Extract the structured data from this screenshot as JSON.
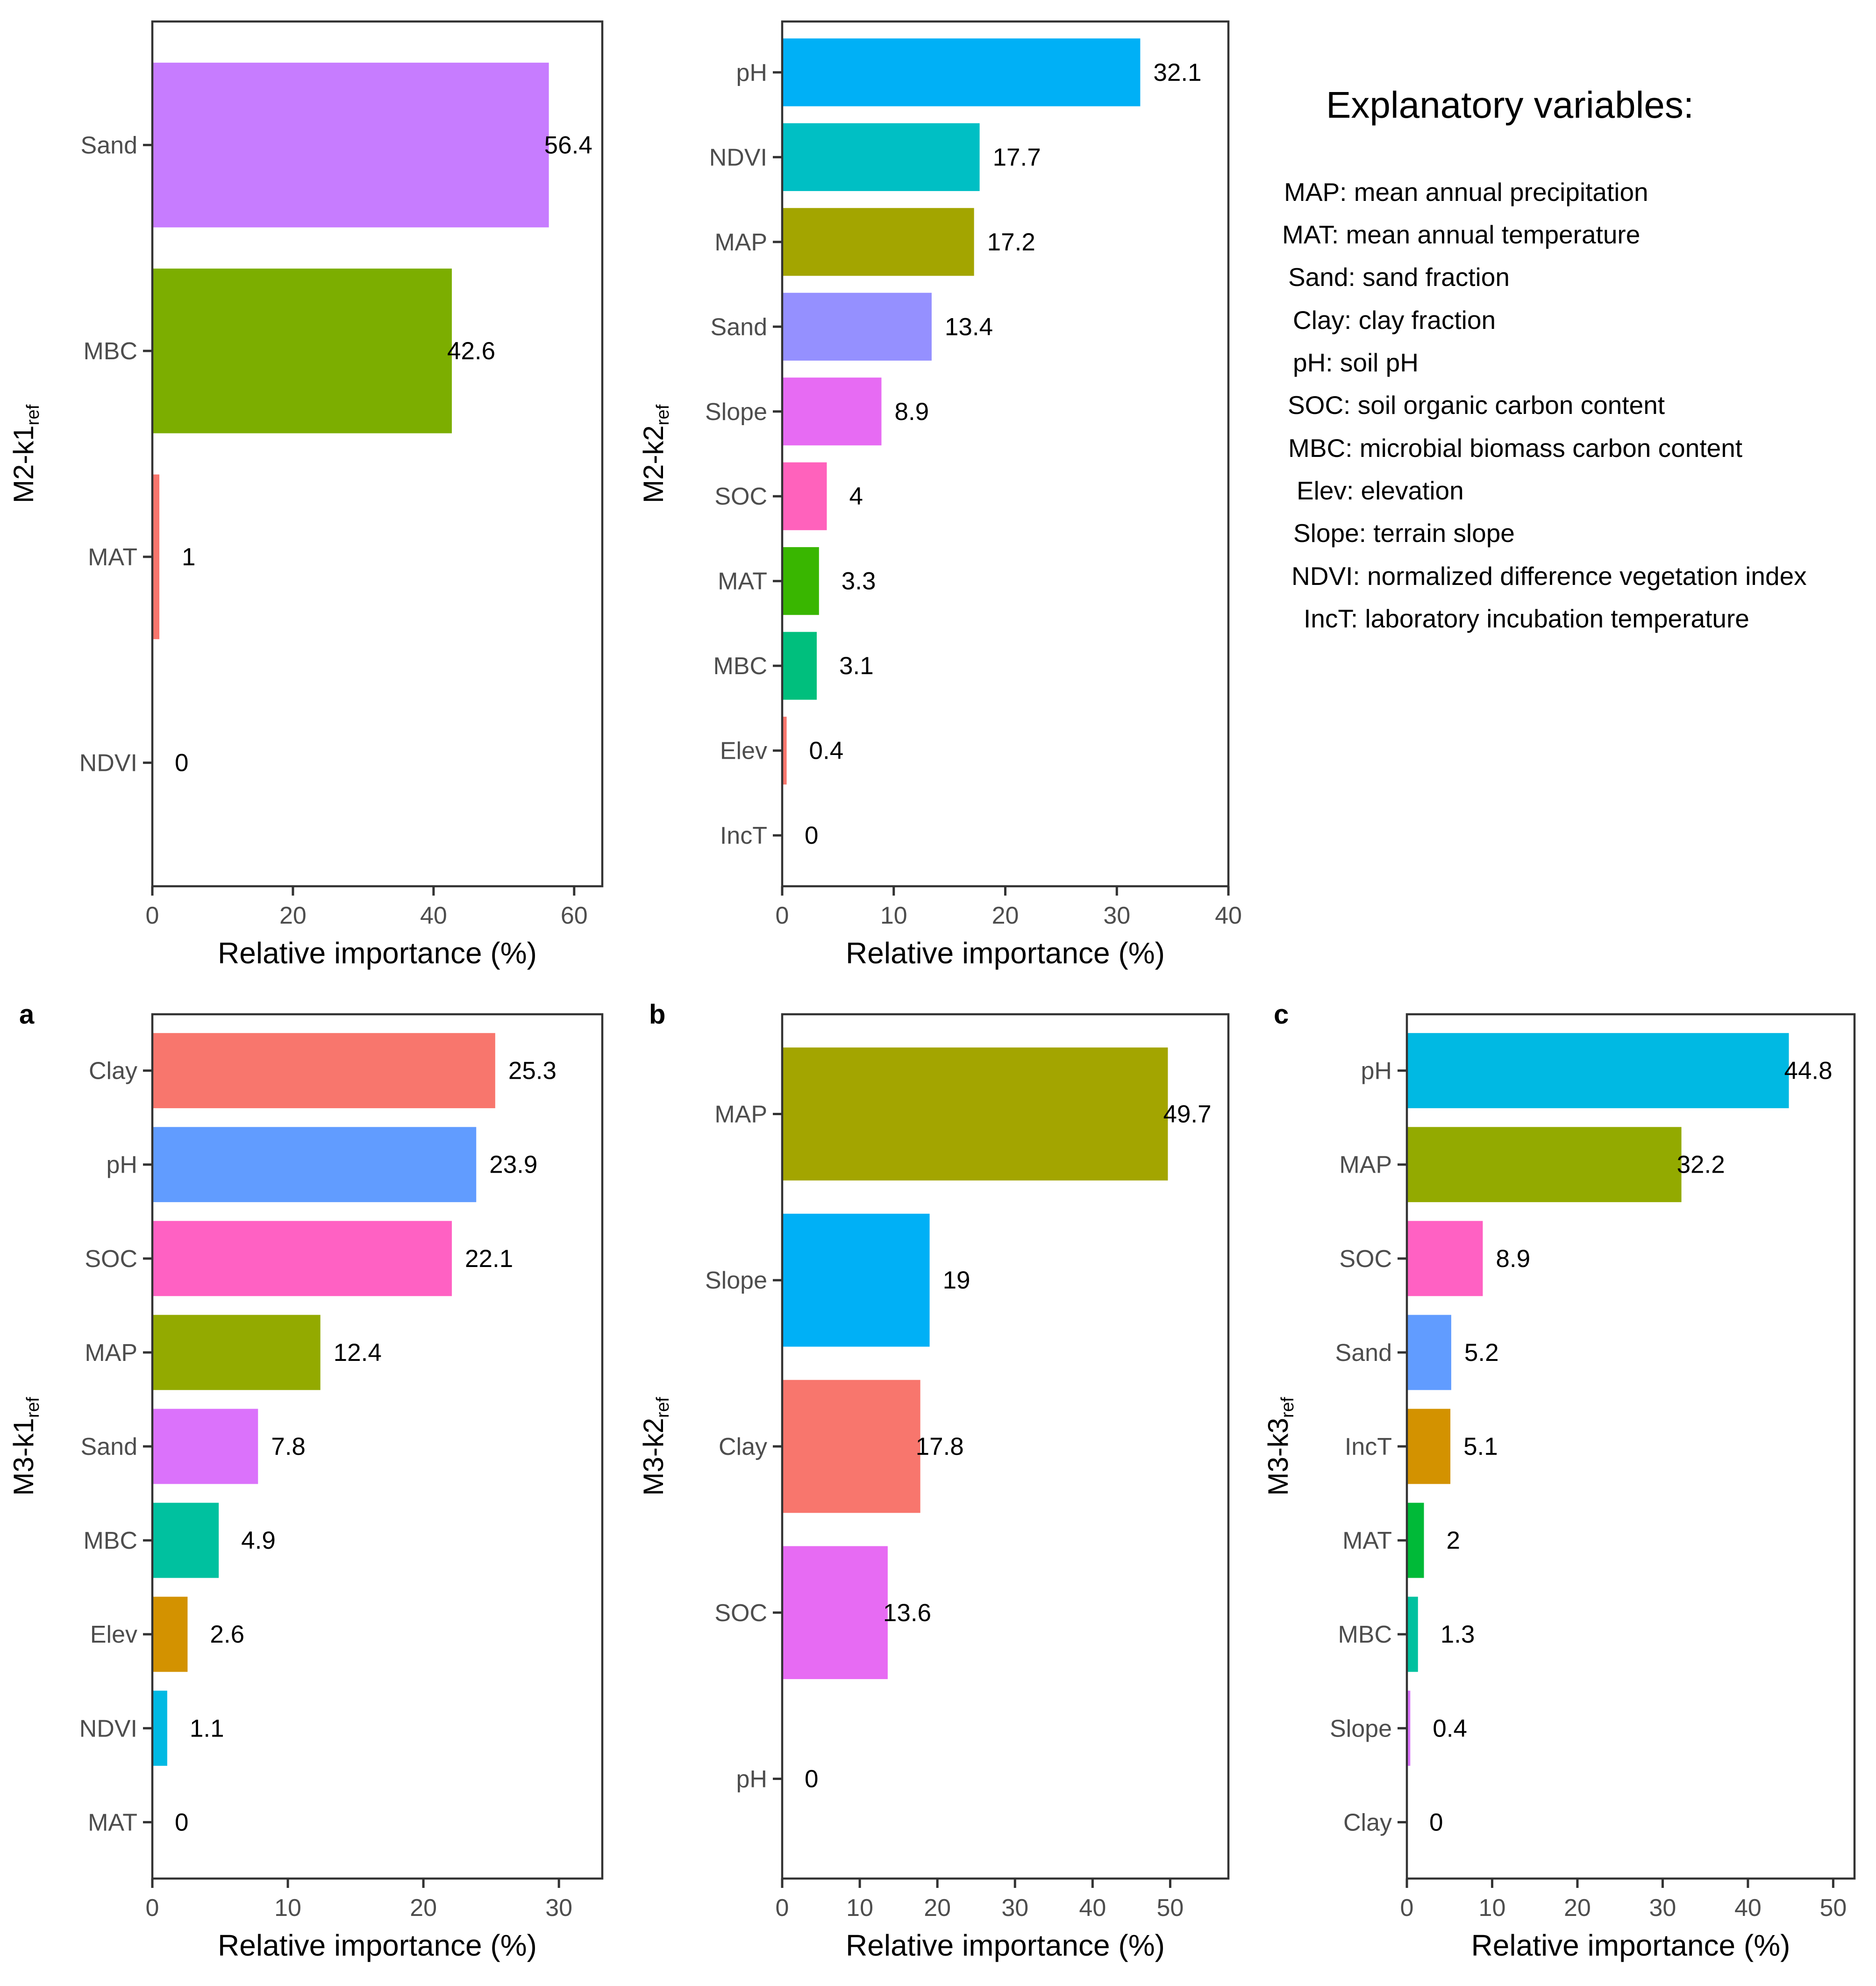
{
  "chart_data": [
    {
      "type": "bar",
      "orientation": "horizontal",
      "id": "m2k1",
      "panel_label": "",
      "ylabel_main": "M2-k1",
      "ylabel_sub": "ref",
      "xlabel": "Relative importance (%)",
      "xlim": [
        0,
        64
      ],
      "xticks": [
        0,
        20,
        40,
        60
      ],
      "categories": [
        "Sand",
        "MBC",
        "MAT",
        "NDVI"
      ],
      "values": [
        56.4,
        42.6,
        1,
        0
      ],
      "value_labels": [
        "56.4",
        "42.6",
        "1",
        "0"
      ],
      "colors": [
        "#C77CFF",
        "#7CAE00",
        "#F8766D",
        "#00BFC4"
      ]
    },
    {
      "type": "bar",
      "orientation": "horizontal",
      "id": "m2k2",
      "panel_label": "",
      "ylabel_main": "M2-k2",
      "ylabel_sub": "ref",
      "xlabel": "Relative importance (%)",
      "xlim": [
        0,
        40
      ],
      "xticks": [
        0,
        10,
        20,
        30,
        40
      ],
      "categories": [
        "pH",
        "NDVI",
        "MAP",
        "Sand",
        "Slope",
        "SOC",
        "MAT",
        "MBC",
        "Elev",
        "IncT"
      ],
      "values": [
        32.1,
        17.7,
        17.2,
        13.4,
        8.9,
        4,
        3.3,
        3.1,
        0.4,
        0
      ],
      "value_labels": [
        "32.1",
        "17.7",
        "17.2",
        "13.4",
        "8.9",
        "4",
        "3.3",
        "3.1",
        "0.4",
        "0"
      ],
      "colors": [
        "#00B0F6",
        "#00BFC4",
        "#A3A500",
        "#9590FF",
        "#E76BF3",
        "#FF62BC",
        "#39B600",
        "#00BF7D",
        "#F8766D",
        "#D89000"
      ]
    },
    {
      "type": "bar",
      "orientation": "horizontal",
      "id": "m3k1",
      "panel_label": "a",
      "ylabel_main": "M3-k1",
      "ylabel_sub": "ref",
      "xlabel": "Relative importance (%)",
      "xlim": [
        0,
        33.2
      ],
      "xticks": [
        0,
        10,
        20,
        30
      ],
      "categories": [
        "Clay",
        "pH",
        "SOC",
        "MAP",
        "Sand",
        "MBC",
        "Elev",
        "NDVI",
        "MAT"
      ],
      "values": [
        25.3,
        23.9,
        22.1,
        12.4,
        7.8,
        4.9,
        2.6,
        1.1,
        0
      ],
      "value_labels": [
        "25.3",
        "23.9",
        "22.1",
        "12.4",
        "7.8",
        "4.9",
        "2.6",
        "1.1",
        "0"
      ],
      "colors": [
        "#F8766D",
        "#619CFF",
        "#FF61C3",
        "#93AA00",
        "#DB72FB",
        "#00C19F",
        "#D39200",
        "#00B9E3",
        "#00BA38"
      ]
    },
    {
      "type": "bar",
      "orientation": "horizontal",
      "id": "m3k2",
      "panel_label": "b",
      "ylabel_main": "M3-k2",
      "ylabel_sub": "ref",
      "xlabel": "Relative importance (%)",
      "xlim": [
        0,
        57.5
      ],
      "xticks": [
        0,
        10,
        20,
        30,
        40,
        50
      ],
      "categories": [
        "MAP",
        "Slope",
        "Clay",
        "SOC",
        "pH"
      ],
      "values": [
        49.7,
        19,
        17.8,
        13.6,
        0
      ],
      "value_labels": [
        "49.7",
        "19",
        "17.8",
        "13.6",
        "0"
      ],
      "colors": [
        "#A3A500",
        "#00B0F6",
        "#F8766D",
        "#E76BF3",
        "#00BF7D"
      ]
    },
    {
      "type": "bar",
      "orientation": "horizontal",
      "id": "m3k3",
      "panel_label": "c",
      "ylabel_main": "M3-k3",
      "ylabel_sub": "ref",
      "xlabel": "Relative importance (%)",
      "xlim": [
        0,
        52.5
      ],
      "xticks": [
        0,
        10,
        20,
        30,
        40,
        50
      ],
      "categories": [
        "pH",
        "MAP",
        "SOC",
        "Sand",
        "IncT",
        "MAT",
        "MBC",
        "Slope",
        "Clay"
      ],
      "values": [
        44.8,
        32.2,
        8.9,
        5.2,
        5.1,
        2,
        1.3,
        0.4,
        0
      ],
      "value_labels": [
        "44.8",
        "32.2",
        "8.9",
        "5.2",
        "5.1",
        "2",
        "1.3",
        "0.4",
        "0"
      ],
      "colors": [
        "#00B9E3",
        "#93AA00",
        "#FF61C3",
        "#619CFF",
        "#D39200",
        "#00BA38",
        "#00C19F",
        "#DB72FB",
        "#F8766D"
      ]
    }
  ],
  "legend": {
    "title": "Explanatory variables:",
    "items": [
      "MAP: mean annual precipitation",
      "MAT: mean annual temperature",
      "Sand: sand fraction",
      "Clay: clay fraction",
      "pH: soil pH",
      "SOC: soil organic carbon content",
      "MBC: microbial biomass carbon content",
      "Elev: elevation",
      "Slope: terrain slope",
      "NDVI: normalized difference vegetation index",
      "IncT: laboratory incubation temperature"
    ]
  }
}
